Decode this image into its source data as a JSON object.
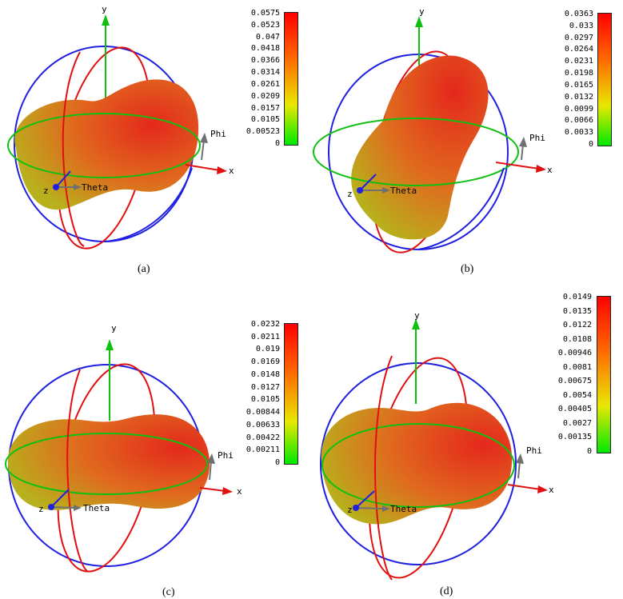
{
  "panels": [
    {
      "caption": "(a)",
      "colorbar_ticks": [
        "0.0575",
        "0.0523",
        "0.047",
        "0.0418",
        "0.0366",
        "0.0314",
        "0.0261",
        "0.0209",
        "0.0157",
        "0.0105",
        "0.00523",
        "0"
      ],
      "axis_labels": {
        "y": "y",
        "x": "x",
        "z": "z",
        "theta": "Theta",
        "phi": "Phi"
      }
    },
    {
      "caption": "(b)",
      "colorbar_ticks": [
        "0.0363",
        "0.033",
        "0.0297",
        "0.0264",
        "0.0231",
        "0.0198",
        "0.0165",
        "0.0132",
        "0.0099",
        "0.0066",
        "0.0033",
        "0"
      ],
      "axis_labels": {
        "y": "y",
        "x": "x",
        "z": "z",
        "theta": "Theta",
        "phi": "Phi"
      }
    },
    {
      "caption": "(c)",
      "colorbar_ticks": [
        "0.0232",
        "0.0211",
        "0.019",
        "0.0169",
        "0.0148",
        "0.0127",
        "0.0105",
        "0.00844",
        "0.00633",
        "0.00422",
        "0.00211",
        "0"
      ],
      "axis_labels": {
        "y": "y",
        "x": "x",
        "z": "z",
        "theta": "Theta",
        "phi": "Phi"
      }
    },
    {
      "caption": "(d)",
      "colorbar_ticks": [
        "0.0149",
        "0.0135",
        "0.0122",
        "0.0108",
        "0.00946",
        "0.0081",
        "0.00675",
        "0.0054",
        "0.00405",
        "0.0027",
        "0.00135",
        "0"
      ],
      "axis_labels": {
        "y": "y",
        "x": "x",
        "z": "z",
        "theta": "Theta",
        "phi": "Phi"
      }
    }
  ],
  "colors": {
    "sphere_red": "#e4281c",
    "sphere_orange": "#e06a1e",
    "sphere_yellow": "#b8b81c",
    "circle_blue": "#2020e0",
    "circle_red": "#e01010",
    "circle_green": "#10c010",
    "axis_green": "#10c010",
    "axis_red": "#e01010",
    "axis_gray": "#707070",
    "colorbar_top": "#ff0000",
    "colorbar_mid": "#e8e800",
    "colorbar_bottom": "#00e800"
  }
}
